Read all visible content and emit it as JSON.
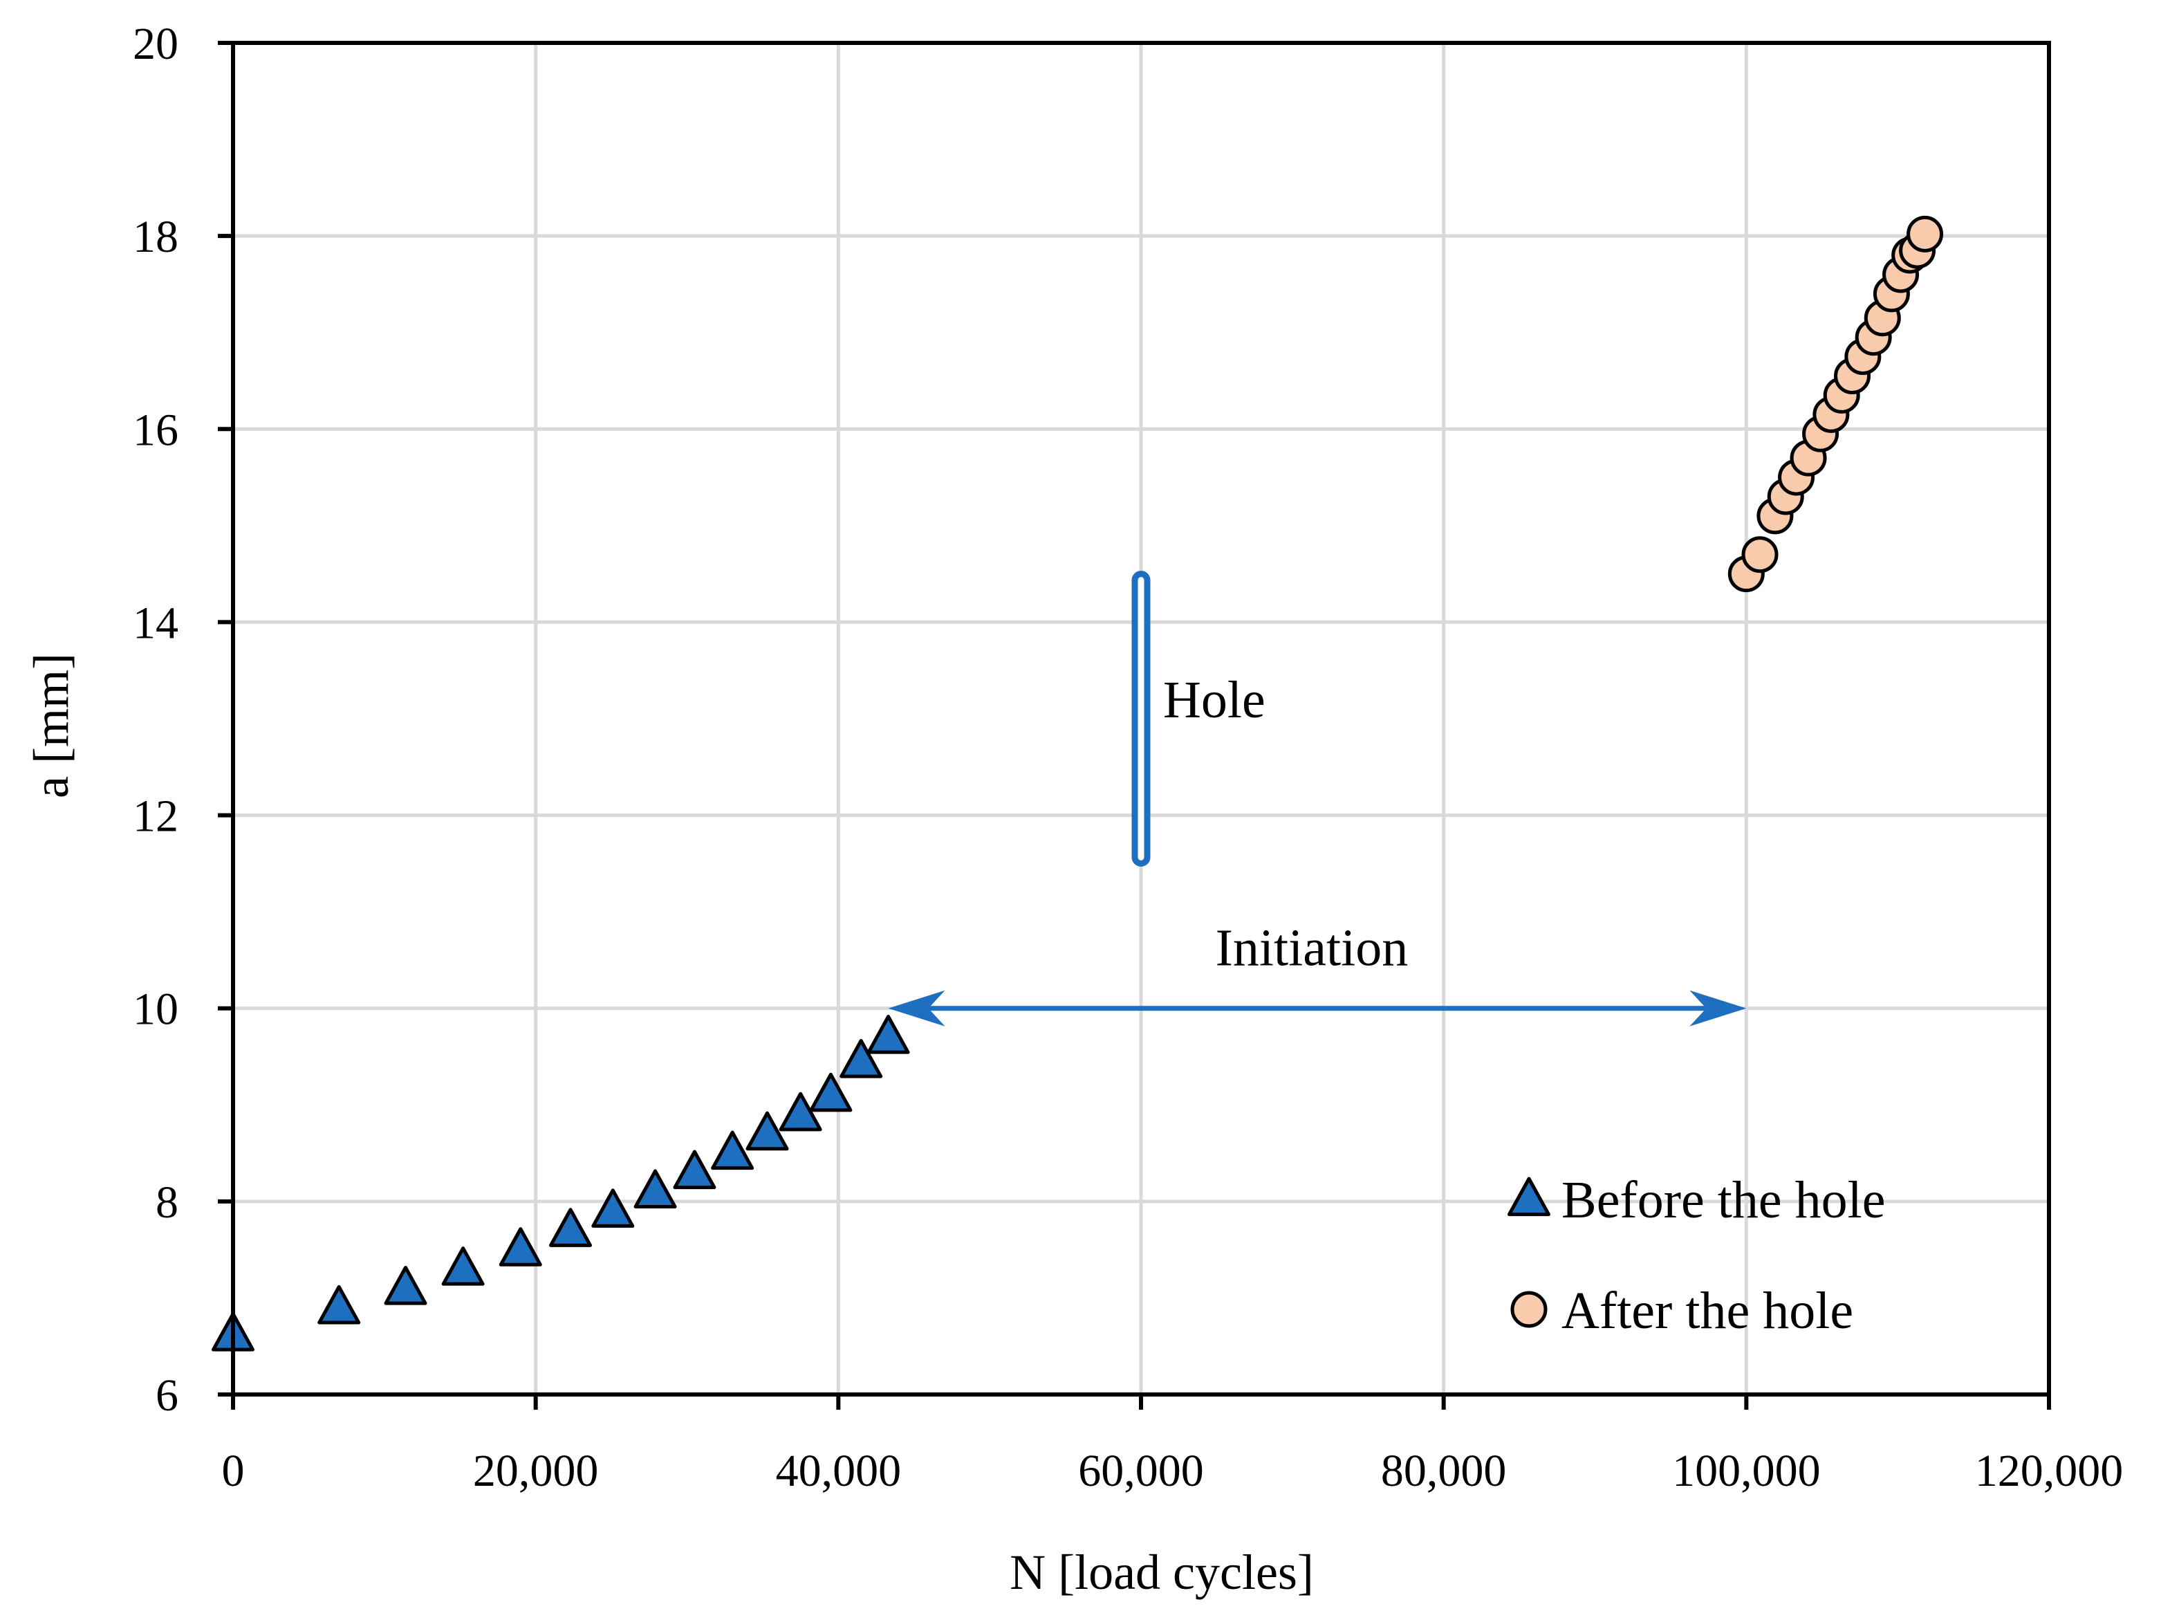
{
  "chart_data": {
    "type": "scatter",
    "title": "",
    "xlabel": "N [load cycles]",
    "ylabel": "a [mm]",
    "xlim": [
      0,
      120000
    ],
    "ylim": [
      6,
      20
    ],
    "xticks": [
      0,
      20000,
      40000,
      60000,
      80000,
      100000,
      120000
    ],
    "xtick_labels": [
      "0",
      "20,000",
      "40,000",
      "60,000",
      "80,000",
      "100,000",
      "120,000"
    ],
    "yticks": [
      6,
      8,
      10,
      12,
      14,
      16,
      18,
      20
    ],
    "ytick_labels": [
      "6",
      "8",
      "10",
      "12",
      "14",
      "16",
      "18",
      "20"
    ],
    "grid": true,
    "legend_position": "bottom-right",
    "series": [
      {
        "name": "Before the hole",
        "marker": "triangle",
        "color": "#1f6fc0",
        "x": [
          0,
          7000,
          11400,
          15200,
          19000,
          22300,
          25100,
          27900,
          30500,
          33000,
          35300,
          37500,
          39500,
          41500,
          43300
        ],
        "y": [
          6.62,
          6.9,
          7.1,
          7.3,
          7.5,
          7.7,
          7.9,
          8.1,
          8.3,
          8.5,
          8.7,
          8.9,
          9.1,
          9.45,
          9.7
        ]
      },
      {
        "name": "After the hole",
        "marker": "circle",
        "color": "#f8cbad",
        "x": [
          100000,
          100900,
          101900,
          102600,
          103300,
          104100,
          104900,
          105600,
          106300,
          107000,
          107700,
          108400,
          109000,
          109600,
          110200,
          110800,
          111300,
          111800
        ],
        "y": [
          14.5,
          14.7,
          15.1,
          15.3,
          15.5,
          15.7,
          15.95,
          16.15,
          16.35,
          16.55,
          16.75,
          16.95,
          17.15,
          17.4,
          17.6,
          17.8,
          17.85,
          18.02
        ]
      }
    ],
    "annotations": {
      "hole": {
        "label": "Hole",
        "x": 60000,
        "y_range": [
          11.5,
          14.5
        ],
        "color": "#1f6fc0"
      },
      "initiation": {
        "label": "Initiation",
        "x_range": [
          43300,
          100000
        ],
        "y": 10,
        "color": "#1f6fc0"
      }
    }
  }
}
